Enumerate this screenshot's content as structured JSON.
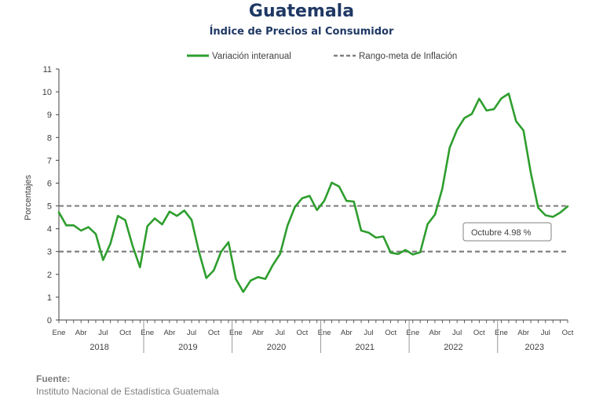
{
  "title": "Guatemala",
  "subtitle": "Índice de Precios al Consumidor",
  "source": {
    "label": "Fuente:",
    "text": "Instituto Nacional de Estadística Guatemala"
  },
  "colors": {
    "series": "#2e9e2e",
    "target": "#808080",
    "title": "#1f3864",
    "axis": "#404040"
  },
  "chart_data": {
    "type": "line",
    "legend_position": "top-center",
    "ylabel": "Porcentajes",
    "ylim": [
      0,
      11
    ],
    "yticks": [
      0,
      1,
      2,
      3,
      4,
      5,
      6,
      7,
      8,
      9,
      10,
      11
    ],
    "grid": false,
    "x_month_labels": [
      "Ene",
      "Abr",
      "Jul",
      "Oct"
    ],
    "years": [
      "2018",
      "2019",
      "2020",
      "2021",
      "2022",
      "2023"
    ],
    "series": [
      {
        "name": "Variación interanual",
        "start": "2018-01",
        "values": [
          4.72,
          4.15,
          4.15,
          3.92,
          4.07,
          3.77,
          2.63,
          3.35,
          4.56,
          4.38,
          3.25,
          2.31,
          4.11,
          4.45,
          4.19,
          4.75,
          4.56,
          4.8,
          4.39,
          2.99,
          1.84,
          2.17,
          2.99,
          3.41,
          1.8,
          1.23,
          1.73,
          1.88,
          1.8,
          2.4,
          2.89,
          4.13,
          4.95,
          5.34,
          5.44,
          4.82,
          5.23,
          6.02,
          5.85,
          5.22,
          5.19,
          3.92,
          3.83,
          3.61,
          3.66,
          2.95,
          2.89,
          3.07,
          2.87,
          2.97,
          4.2,
          4.62,
          5.75,
          7.55,
          8.34,
          8.85,
          9.03,
          9.7,
          9.18,
          9.24,
          9.71,
          9.92,
          8.71,
          8.31,
          6.46,
          4.92,
          4.59,
          4.52,
          4.71,
          4.98
        ]
      },
      {
        "name": "Rango-meta de Inflación",
        "style": "dashed",
        "hlines": [
          3,
          5
        ]
      }
    ],
    "annotation": {
      "text": "Octubre 4.98 %",
      "month": "2023-10",
      "value": 4.98
    }
  }
}
